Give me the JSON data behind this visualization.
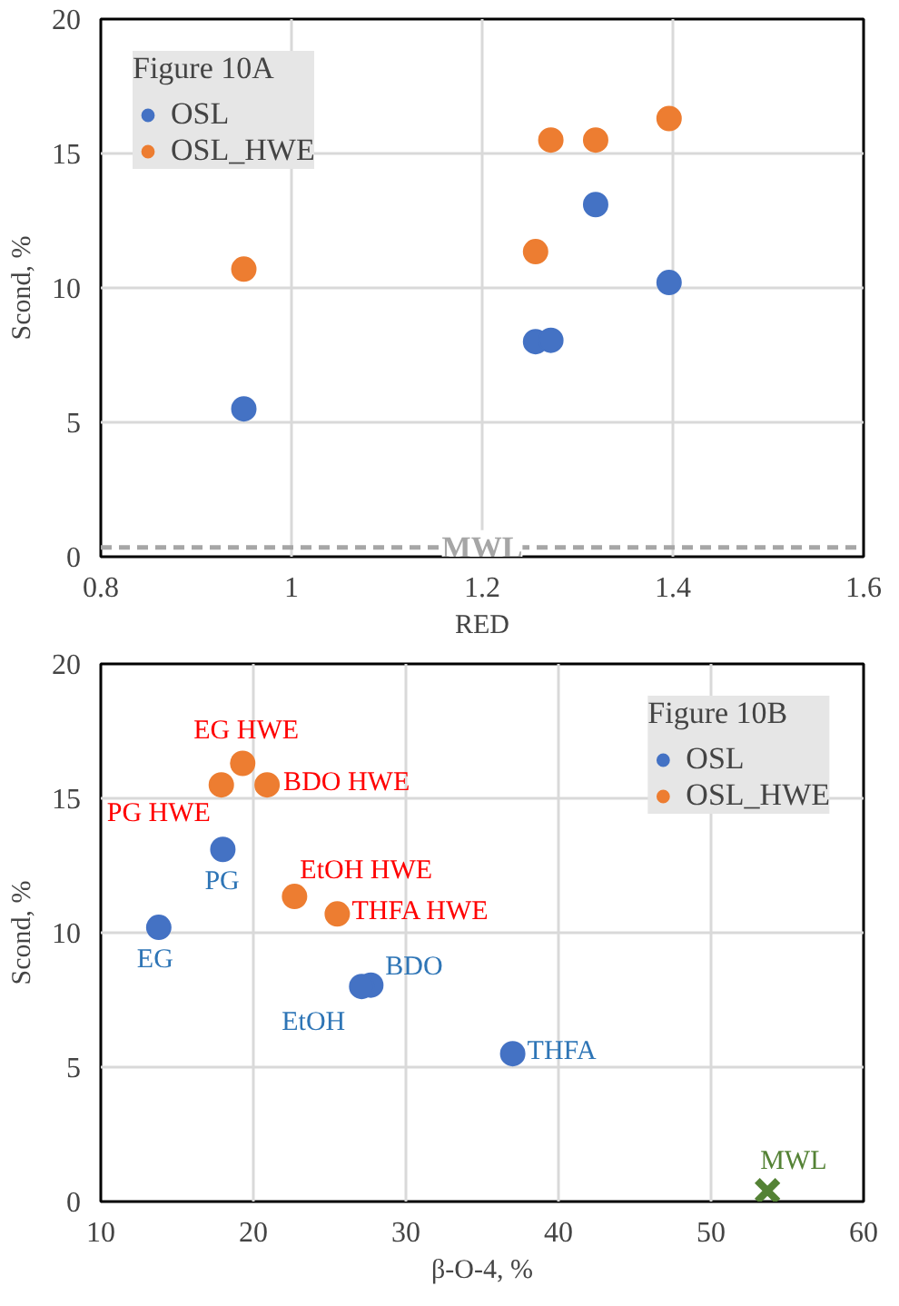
{
  "chart_data": [
    {
      "type": "scatter",
      "xlabel": "RED",
      "ylabel": "Scond, %",
      "legend_title": "Figure 10A",
      "legend": "top left",
      "grid": true,
      "marker": "circle",
      "xlim": [
        0.8,
        1.6
      ],
      "xticks": [
        0.8,
        1,
        1.2,
        1.4,
        1.6
      ],
      "ylim": [
        0,
        20
      ],
      "yticks": [
        0,
        5,
        10,
        15,
        20
      ],
      "series": [
        {
          "name": "OSL",
          "color": "#4472c4",
          "x": [
            0.95,
            1.256,
            1.272,
            1.319,
            1.396
          ],
          "values": [
            5.5,
            8.0,
            8.05,
            13.1,
            10.2
          ]
        },
        {
          "name": "OSL_HWE",
          "color": "#ed7d31",
          "x": [
            0.95,
            1.256,
            1.272,
            1.319,
            1.396
          ],
          "values": [
            10.7,
            11.35,
            15.5,
            15.5,
            16.3
          ]
        }
      ],
      "ref_lines": [
        {
          "axis": "y",
          "value": 0.35,
          "label": "MWL",
          "color": "#a6a6a6",
          "line_style": "dashed"
        }
      ]
    },
    {
      "type": "scatter",
      "xlabel": "β-O-4, %",
      "ylabel": "Scond, %",
      "legend_title": "Figure 10B",
      "legend": "top right",
      "grid": true,
      "marker": "circle",
      "xlim": [
        10,
        60
      ],
      "xticks": [
        10,
        20,
        30,
        40,
        50,
        60
      ],
      "ylim": [
        0,
        20
      ],
      "yticks": [
        0,
        5,
        10,
        15,
        20
      ],
      "series": [
        {
          "name": "OSL",
          "color": "#4472c4",
          "x": [
            13.8,
            18.0,
            27.7,
            27.1,
            37.0
          ],
          "values": [
            10.2,
            13.1,
            8.05,
            8.0,
            5.5
          ]
        },
        {
          "name": "OSL_HWE",
          "color": "#ed7d31",
          "x": [
            19.3,
            17.9,
            20.9,
            22.7,
            25.5
          ],
          "values": [
            16.3,
            15.5,
            15.5,
            11.35,
            10.7
          ]
        },
        {
          "color": "#548235",
          "marker": "cross",
          "x": [
            53.7
          ],
          "values": [
            0.4
          ]
        }
      ],
      "annotations": [
        {
          "text": "EG",
          "x": 13.8,
          "y": 10.2
        },
        {
          "text": "PG",
          "x": 18.0,
          "y": 13.1
        },
        {
          "text": "BDO",
          "x": 27.7,
          "y": 8.05
        },
        {
          "text": "EtOH",
          "x": 27.1,
          "y": 8.0
        },
        {
          "text": "THFA",
          "x": 37.0,
          "y": 5.5
        },
        {
          "text": "EG HWE",
          "x": 19.3,
          "y": 16.3
        },
        {
          "text": "PG HWE",
          "x": 17.9,
          "y": 15.5
        },
        {
          "text": "BDO HWE",
          "x": 20.9,
          "y": 15.5
        },
        {
          "text": "EtOH HWE",
          "x": 22.7,
          "y": 11.35
        },
        {
          "text": "THFA HWE",
          "x": 25.5,
          "y": 10.7
        },
        {
          "text": "MWL",
          "x": 53.7,
          "y": 0.4
        }
      ]
    }
  ]
}
